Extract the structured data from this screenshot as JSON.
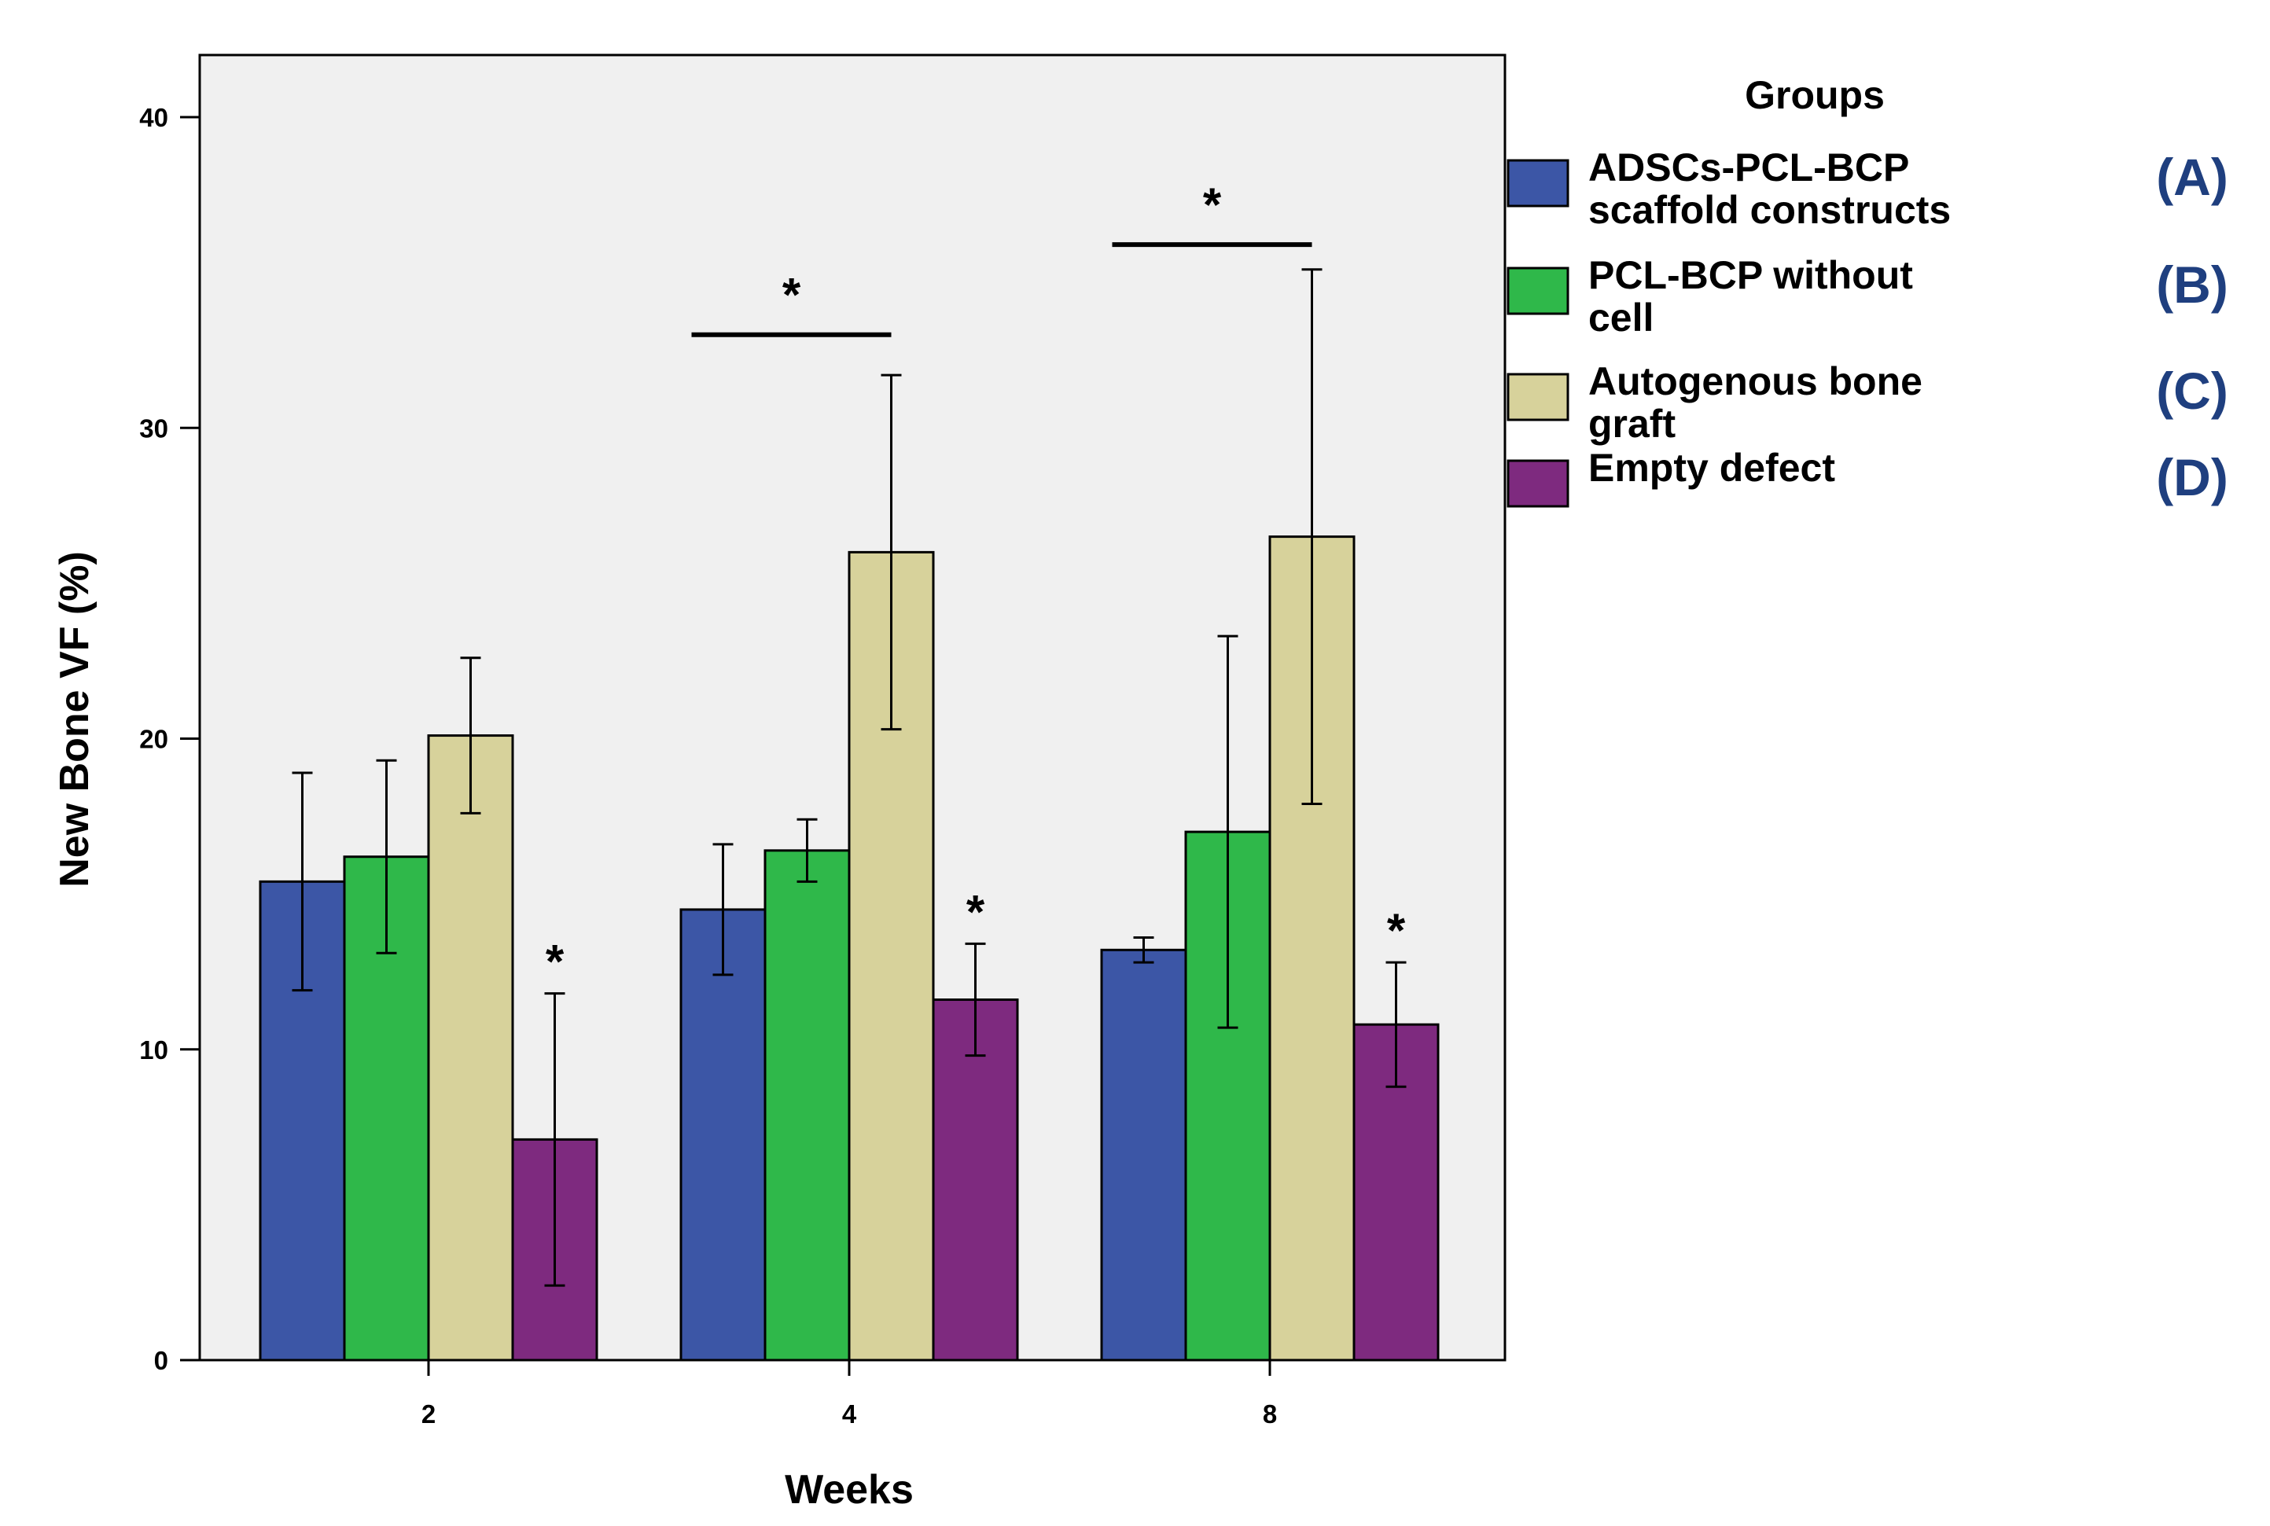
{
  "chart_data": {
    "type": "bar",
    "xlabel": "Weeks",
    "ylabel": "New Bone VF (%)",
    "ylim": [
      0,
      42
    ],
    "yticks": [
      0,
      10,
      20,
      30,
      40
    ],
    "categories": [
      "2",
      "4",
      "8"
    ],
    "legend": {
      "title": "Groups",
      "placement": "right"
    },
    "series": [
      {
        "name": "ADSCs-PCL-BCP scaffold constructs",
        "name_lines": [
          "ADSCs-PCL-BCP",
          "scaffold constructs"
        ],
        "code": "(A)",
        "color": "#3c56a6",
        "values": [
          15.4,
          14.5,
          13.2
        ],
        "errors": [
          3.5,
          2.1,
          0.4
        ]
      },
      {
        "name": "PCL-BCP without cell",
        "name_lines": [
          "PCL-BCP without",
          "cell"
        ],
        "code": "(B)",
        "color": "#2fb84a",
        "values": [
          16.2,
          16.4,
          17.0
        ],
        "errors": [
          3.1,
          1.0,
          6.3
        ]
      },
      {
        "name": "Autogenous bone graft",
        "name_lines": [
          "Autogenous bone",
          "graft"
        ],
        "code": "(C)",
        "color": "#d7d29b",
        "values": [
          20.1,
          26.0,
          26.5
        ],
        "errors": [
          2.5,
          5.7,
          8.6
        ]
      },
      {
        "name": "Empty defect",
        "name_lines": [
          "Empty defect"
        ],
        "code": "(D)",
        "color": "#7e2a7f",
        "values": [
          7.1,
          11.6,
          10.8
        ],
        "errors": [
          4.7,
          1.8,
          2.0
        ]
      }
    ],
    "annotations": [
      {
        "text": "*",
        "category_index": 0,
        "series_index": 3,
        "type": "star"
      },
      {
        "text": "*",
        "category_index": 1,
        "series_index": 3,
        "type": "star"
      },
      {
        "text": "*",
        "category_index": 2,
        "series_index": 3,
        "type": "star"
      },
      {
        "text": "*",
        "category_index": 1,
        "type": "bracket",
        "y": 33.0,
        "from_series": 0,
        "to_series": 2
      },
      {
        "text": "*",
        "category_index": 2,
        "type": "bracket",
        "y": 35.9,
        "from_series": 0,
        "to_series": 2
      }
    ],
    "code_color": "#1f3f7f",
    "plot_background": "#f0f0f0",
    "grid": false
  }
}
